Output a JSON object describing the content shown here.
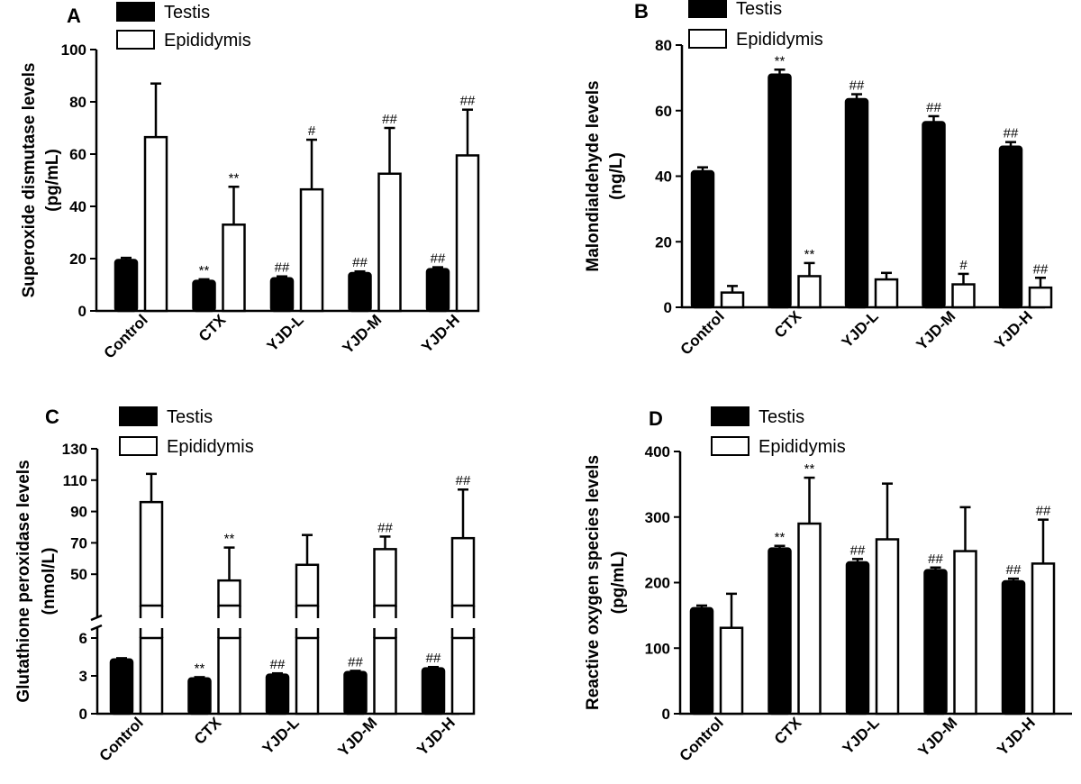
{
  "chart_data": [
    {
      "panel": "A",
      "type": "bar",
      "ylabel_lines": [
        "Superoxide dismutase levels",
        "(pg/mL)"
      ],
      "categories": [
        "Control",
        "CTX",
        "YJD-L",
        "YJD-M",
        "YJD-H"
      ],
      "yticks": [
        0,
        20,
        40,
        60,
        80,
        100
      ],
      "ylim": [
        0,
        100
      ],
      "series": [
        {
          "name": "Testis",
          "fill": "#000000",
          "values": [
            19.5,
            11.5,
            12.5,
            14.5,
            16
          ],
          "errors": [
            0.8,
            0.6,
            0.7,
            0.6,
            0.7
          ],
          "labels": [
            "",
            "**",
            "##",
            "##",
            "##"
          ]
        },
        {
          "name": "Epididymis",
          "fill": "#ffffff",
          "values": [
            66.5,
            33,
            46.5,
            52.5,
            59.5
          ],
          "errors": [
            20.5,
            14.5,
            19,
            17.5,
            17.5
          ],
          "labels": [
            "",
            "**",
            "#",
            "##",
            "##"
          ]
        }
      ]
    },
    {
      "panel": "B",
      "type": "bar",
      "ylabel_lines": [
        "Malondialdehyde levels",
        "(ng/L)"
      ],
      "categories": [
        "Control",
        "CTX",
        "YJD-L",
        "YJD-M",
        "YJD-H"
      ],
      "yticks": [
        0,
        20,
        40,
        60,
        80
      ],
      "ylim": [
        0,
        80
      ],
      "series": [
        {
          "name": "Testis",
          "fill": "#000000",
          "values": [
            41.5,
            71,
            63.5,
            56.5,
            49
          ],
          "errors": [
            1.2,
            1.5,
            1.5,
            1.8,
            1.4
          ],
          "labels": [
            "",
            "**",
            "##",
            "##",
            "##"
          ]
        },
        {
          "name": "Epididymis",
          "fill": "#ffffff",
          "values": [
            4.5,
            9.5,
            8.5,
            7,
            6
          ],
          "errors": [
            2,
            4,
            2,
            3.2,
            3
          ],
          "labels": [
            "",
            "**",
            "",
            "#",
            "##"
          ]
        }
      ]
    },
    {
      "panel": "C",
      "type": "bar",
      "broken_axis": true,
      "ylabel_lines": [
        "Glutathione peroxidase levels",
        "(nmol/L)"
      ],
      "categories": [
        "Control",
        "CTX",
        "YJD-L",
        "YJD-M",
        "YJD-H"
      ],
      "yticks_lower": [
        0,
        3,
        6
      ],
      "yticks_upper": [
        50,
        70,
        90,
        110,
        130
      ],
      "ylim_lower": [
        0,
        6
      ],
      "ylim_upper": [
        30,
        130
      ],
      "series": [
        {
          "name": "Testis",
          "fill": "#000000",
          "values": [
            4.3,
            2.8,
            3.1,
            3.3,
            3.6
          ],
          "errors": [
            0.1,
            0.1,
            0.1,
            0.1,
            0.1
          ],
          "labels": [
            "",
            "**",
            "##",
            "##",
            "##"
          ]
        },
        {
          "name": "Epididymis",
          "fill": "#ffffff",
          "values": [
            96,
            46,
            56,
            66,
            73
          ],
          "errors": [
            18,
            21,
            19,
            8,
            31
          ],
          "labels": [
            "",
            "**",
            "",
            "##",
            "##"
          ]
        }
      ]
    },
    {
      "panel": "D",
      "type": "bar",
      "ylabel_lines": [
        "Reactive oxygen species levels",
        "(pg/mL)"
      ],
      "categories": [
        "Control",
        "CTX",
        "YJD-L",
        "YJD-M",
        "YJD-H"
      ],
      "yticks": [
        0,
        100,
        200,
        300,
        400
      ],
      "ylim": [
        0,
        400
      ],
      "series": [
        {
          "name": "Testis",
          "fill": "#000000",
          "values": [
            161,
            252,
            231,
            219,
            202
          ],
          "errors": [
            4,
            4,
            5,
            4,
            4
          ],
          "labels": [
            "",
            "**",
            "##",
            "##",
            "##"
          ]
        },
        {
          "name": "Epididymis",
          "fill": "#ffffff",
          "values": [
            131,
            290,
            266,
            248,
            229
          ],
          "errors": [
            52,
            70,
            85,
            67,
            67
          ],
          "labels": [
            "",
            "**",
            "",
            "",
            "##"
          ]
        }
      ]
    }
  ]
}
